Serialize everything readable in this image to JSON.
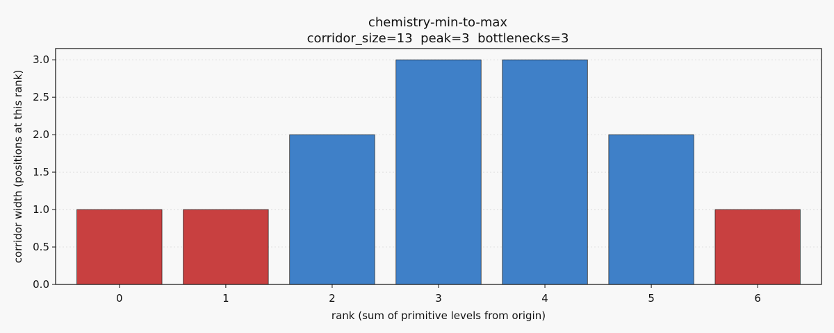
{
  "chart_data": {
    "type": "bar",
    "title": "chemistry-min-to-max",
    "subtitle": "corridor_size=13  peak=3  bottlenecks=3",
    "xlabel": "rank (sum of primitive levels from origin)",
    "ylabel": "corridor width (positions at this rank)",
    "categories": [
      "0",
      "1",
      "2",
      "3",
      "4",
      "5",
      "6"
    ],
    "values": [
      1,
      1,
      2,
      3,
      3,
      2,
      1
    ],
    "bottleneck": [
      true,
      true,
      false,
      false,
      false,
      false,
      true
    ],
    "ylim": [
      0,
      3.15
    ],
    "yticks": [
      "0.0",
      "0.5",
      "1.0",
      "1.5",
      "2.0",
      "2.5",
      "3.0"
    ],
    "grid": "y",
    "colors": {
      "bottleneck": "#c84040",
      "normal": "#3f80c8"
    }
  }
}
